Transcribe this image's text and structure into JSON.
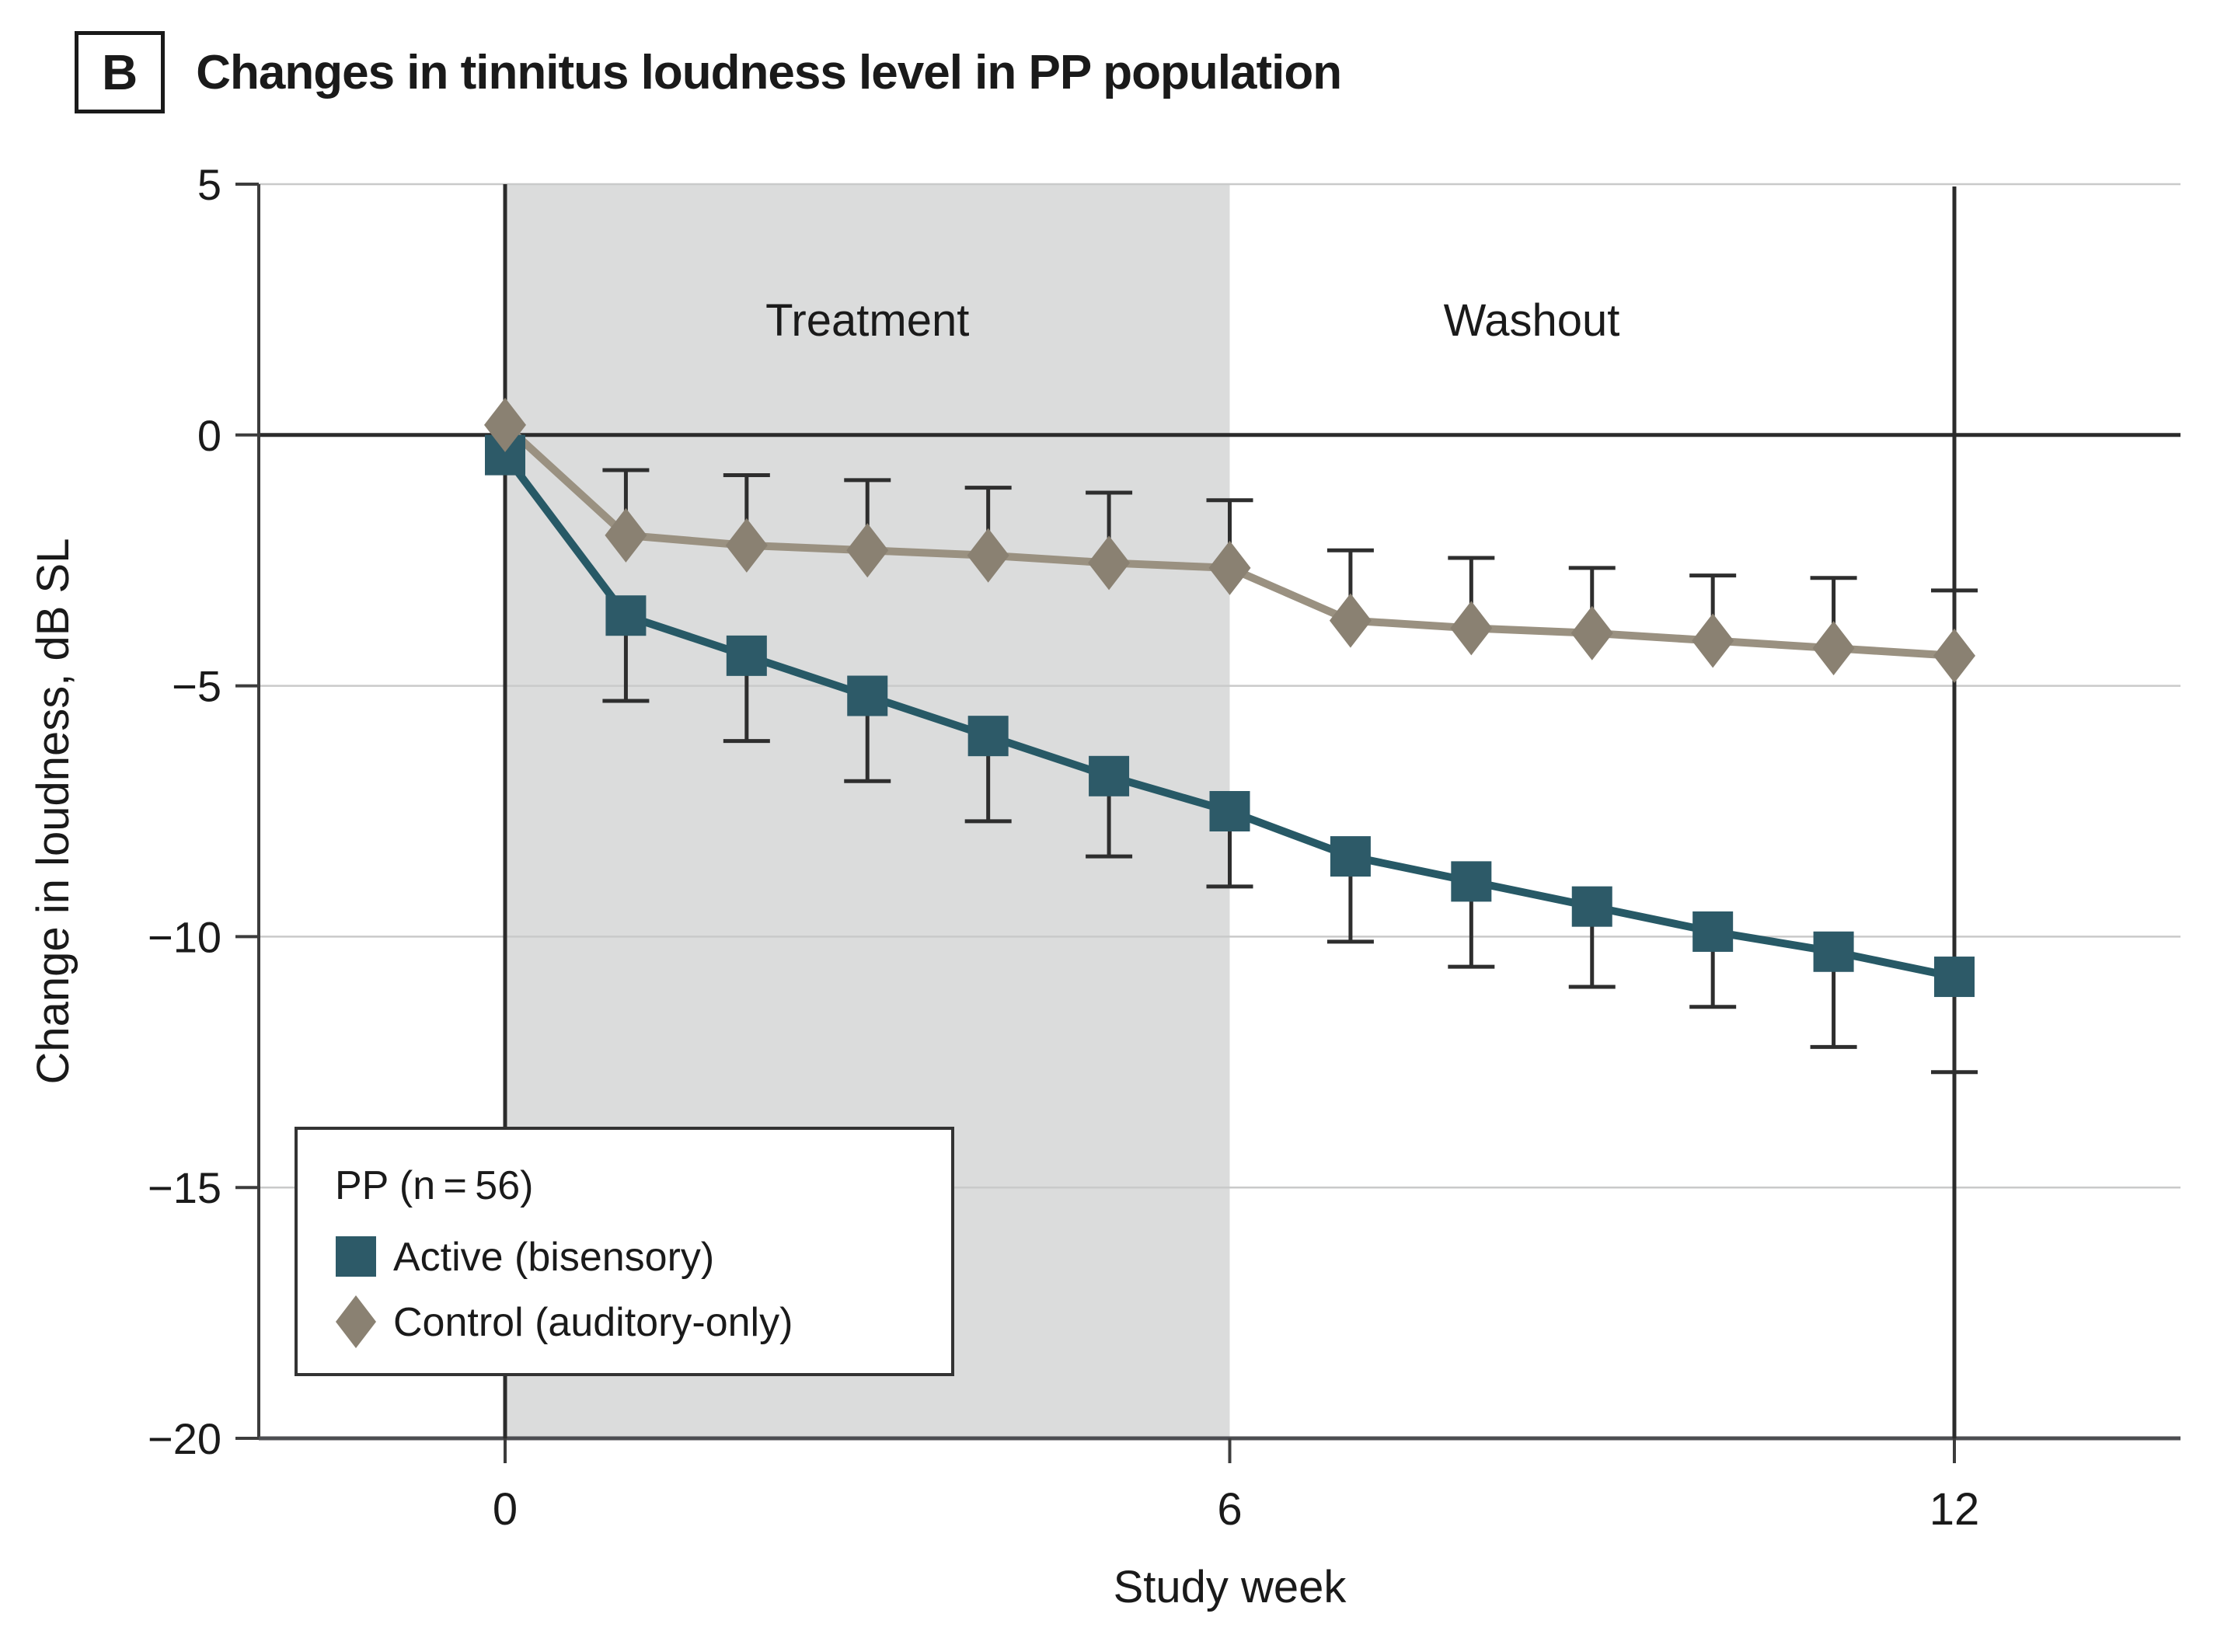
{
  "panel": {
    "label": "B",
    "title": "Changes in tinnitus loudness level in PP population"
  },
  "chart_data": {
    "type": "line",
    "x": [
      0,
      1,
      2,
      3,
      4,
      5,
      6,
      7,
      8,
      9,
      10,
      11,
      12
    ],
    "xlabel": "Study week",
    "ylabel": "Change in loudness, dB SL",
    "ylim": [
      -20,
      5
    ],
    "yticks": [
      5,
      0,
      -5,
      -10,
      -15,
      -20
    ],
    "ytick_labels": [
      "5",
      "0",
      "−5",
      "−10",
      "−15",
      "−20"
    ],
    "xticks": [
      0,
      6,
      12
    ],
    "xtick_labels": [
      "0",
      "6",
      "12"
    ],
    "grid": "horizontal-light-gridlines",
    "legend": {
      "title": "PP (n = 56)",
      "position": "lower-left"
    },
    "regions": [
      {
        "label": "Treatment",
        "x0": 0,
        "x1": 6,
        "shaded": true,
        "fill": "#DBDCDC",
        "label_week": 3
      },
      {
        "label": "Washout",
        "x0": 6,
        "x1": 12,
        "shaded": false,
        "fill": "#FFFFFF",
        "label_week": 8.5
      }
    ],
    "series": [
      {
        "name": "Active (bisensory)",
        "marker": "square",
        "color": "#2D5A68",
        "line_color": "#275966",
        "values": [
          -0.4,
          -3.6,
          -4.4,
          -5.2,
          -6.0,
          -6.8,
          -7.5,
          -8.4,
          -8.9,
          -9.4,
          -9.9,
          -10.3,
          -10.8
        ],
        "error": [
          0,
          1.7,
          1.7,
          1.7,
          1.7,
          1.6,
          1.5,
          1.7,
          1.7,
          1.6,
          1.5,
          1.9,
          1.9
        ],
        "error_direction": "down"
      },
      {
        "name": "Control (auditory-only)",
        "marker": "diamond",
        "color": "#8A8172",
        "line_color": "#9A9181",
        "values": [
          0.2,
          -2.0,
          -2.2,
          -2.3,
          -2.4,
          -2.55,
          -2.65,
          -3.7,
          -3.85,
          -3.95,
          -4.1,
          -4.25,
          -4.4
        ],
        "error": [
          0,
          1.3,
          1.4,
          1.4,
          1.35,
          1.4,
          1.35,
          1.4,
          1.4,
          1.3,
          1.3,
          1.4,
          1.3
        ],
        "error_direction": "up"
      }
    ],
    "axis_colors": {
      "zero_line": "#2B2B2B",
      "event_lines": "#2B2B2B",
      "grid": "#C9CACA",
      "spine": "#3C3C3C",
      "x_axis": "#4D4E52",
      "error_bar": "#2E2E2E",
      "text": "#1A1A1A"
    }
  }
}
